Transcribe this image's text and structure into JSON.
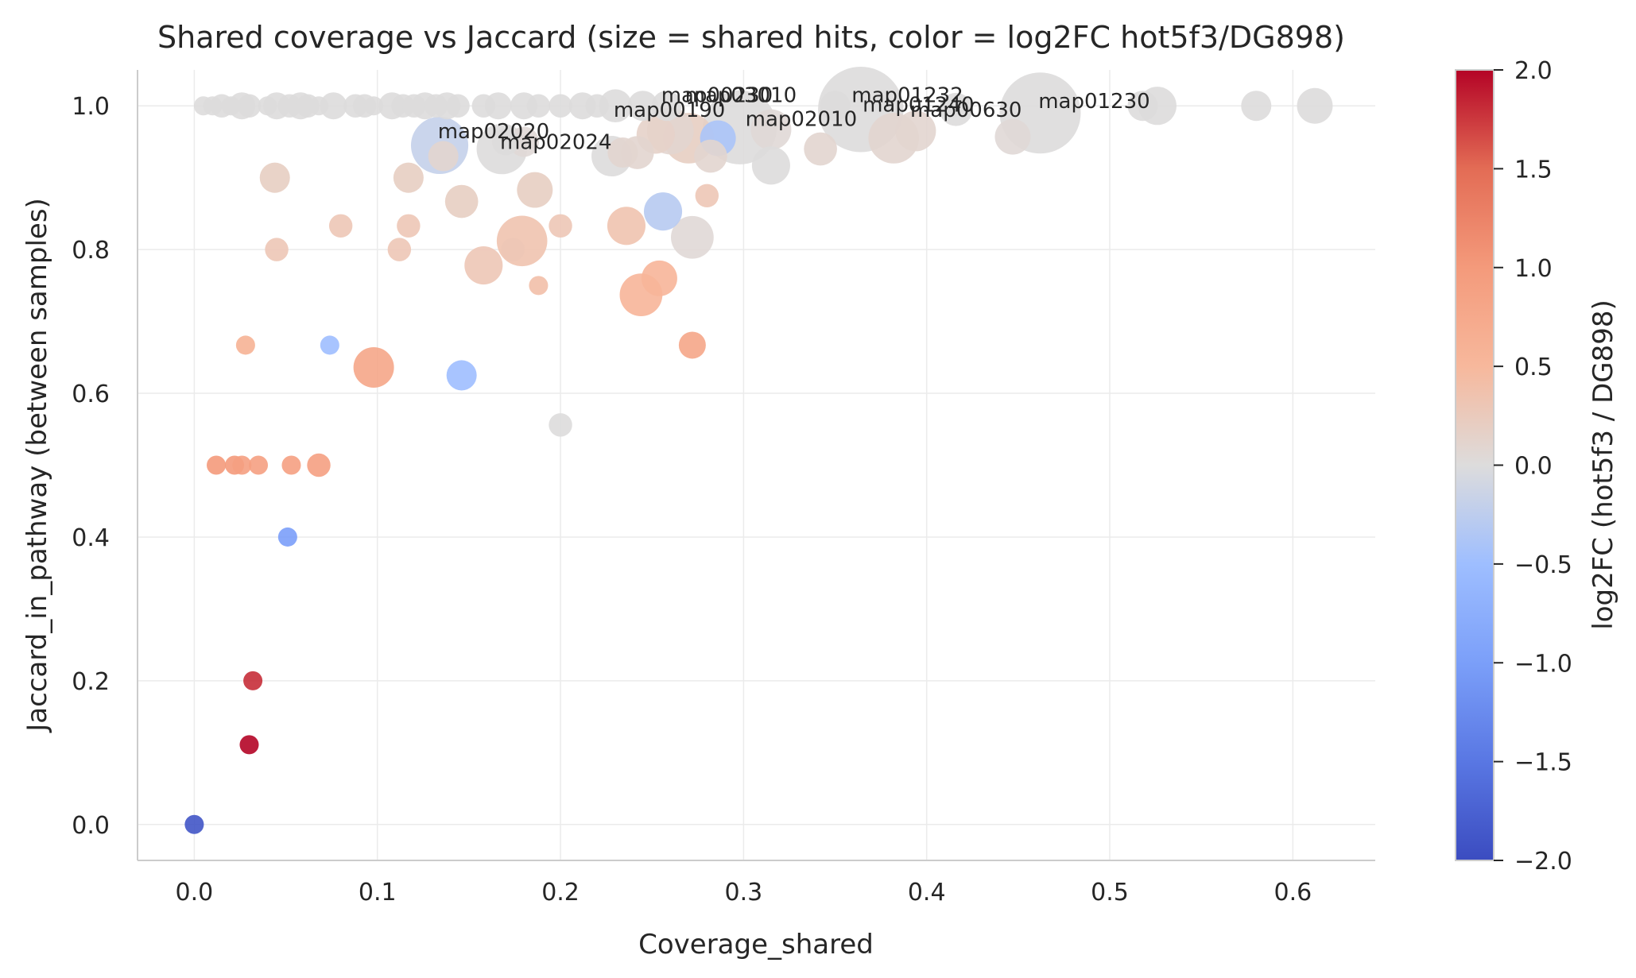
{
  "chart_data": {
    "type": "scatter",
    "title": "Shared coverage vs Jaccard (size = shared hits, color = log2FC hot5f3/DG898)",
    "xlabel": "Coverage_shared",
    "ylabel": "Jaccard_in_pathway (between samples)",
    "xlim": [
      -0.031,
      0.645
    ],
    "ylim": [
      -0.05,
      1.05
    ],
    "xticks": [
      "0.0",
      "0.1",
      "0.2",
      "0.3",
      "0.4",
      "0.5",
      "0.6"
    ],
    "yticks": [
      "0.0",
      "0.2",
      "0.4",
      "0.6",
      "0.8",
      "1.0"
    ],
    "grid": true,
    "colorbar": {
      "label": "log2FC (hot5f3 / DG898)",
      "min": -2.0,
      "max": 2.0,
      "colormap": "coolwarm",
      "ticks": [
        "2.0",
        "1.5",
        "1.0",
        "0.5",
        "0.0",
        "−0.5",
        "−1.0",
        "−1.5",
        "−2.0"
      ]
    },
    "points": [
      {
        "x": 0.005,
        "y": 1.0,
        "s": 2,
        "c": 0.0
      },
      {
        "x": 0.01,
        "y": 1.0,
        "s": 2,
        "c": 0.0
      },
      {
        "x": 0.015,
        "y": 1.0,
        "s": 3,
        "c": 0.0
      },
      {
        "x": 0.02,
        "y": 1.0,
        "s": 2,
        "c": 0.0
      },
      {
        "x": 0.026,
        "y": 1.0,
        "s": 4,
        "c": 0.0
      },
      {
        "x": 0.03,
        "y": 1.0,
        "s": 3,
        "c": 0.0
      },
      {
        "x": 0.04,
        "y": 1.0,
        "s": 2,
        "c": 0.0
      },
      {
        "x": 0.045,
        "y": 1.0,
        "s": 4,
        "c": 0.0
      },
      {
        "x": 0.052,
        "y": 1.0,
        "s": 3,
        "c": 0.0
      },
      {
        "x": 0.058,
        "y": 1.0,
        "s": 4,
        "c": 0.0
      },
      {
        "x": 0.062,
        "y": 1.0,
        "s": 3,
        "c": 0.0
      },
      {
        "x": 0.068,
        "y": 1.0,
        "s": 2,
        "c": 0.0
      },
      {
        "x": 0.076,
        "y": 1.0,
        "s": 4,
        "c": 0.0
      },
      {
        "x": 0.088,
        "y": 1.0,
        "s": 3,
        "c": 0.0
      },
      {
        "x": 0.093,
        "y": 1.0,
        "s": 3,
        "c": 0.0
      },
      {
        "x": 0.098,
        "y": 1.0,
        "s": 2,
        "c": 0.0
      },
      {
        "x": 0.108,
        "y": 1.0,
        "s": 4,
        "c": 0.0
      },
      {
        "x": 0.114,
        "y": 1.0,
        "s": 3,
        "c": 0.0
      },
      {
        "x": 0.12,
        "y": 1.0,
        "s": 3,
        "c": 0.0
      },
      {
        "x": 0.126,
        "y": 1.0,
        "s": 4,
        "c": 0.0
      },
      {
        "x": 0.132,
        "y": 1.0,
        "s": 3,
        "c": 0.0
      },
      {
        "x": 0.138,
        "y": 1.0,
        "s": 4,
        "c": 0.0
      },
      {
        "x": 0.144,
        "y": 1.0,
        "s": 3,
        "c": 0.0
      },
      {
        "x": 0.158,
        "y": 1.0,
        "s": 3,
        "c": 0.0
      },
      {
        "x": 0.166,
        "y": 1.0,
        "s": 4,
        "c": 0.0
      },
      {
        "x": 0.18,
        "y": 1.0,
        "s": 4,
        "c": 0.0
      },
      {
        "x": 0.188,
        "y": 1.0,
        "s": 3,
        "c": 0.0
      },
      {
        "x": 0.2,
        "y": 1.0,
        "s": 3,
        "c": 0.0
      },
      {
        "x": 0.212,
        "y": 1.0,
        "s": 4,
        "c": 0.0
      },
      {
        "x": 0.22,
        "y": 1.0,
        "s": 3,
        "c": 0.0
      },
      {
        "x": 0.23,
        "y": 1.0,
        "s": 6,
        "c": 0.0
      },
      {
        "x": 0.245,
        "y": 1.0,
        "s": 5,
        "c": 0.0
      },
      {
        "x": 0.258,
        "y": 1.0,
        "s": 5,
        "c": 0.0
      },
      {
        "x": 0.35,
        "y": 1.0,
        "s": 5,
        "c": 0.0
      },
      {
        "x": 0.364,
        "y": 0.995,
        "s": 40,
        "c": 0.0
      },
      {
        "x": 0.416,
        "y": 0.995,
        "s": 6,
        "c": 0.0
      },
      {
        "x": 0.462,
        "y": 0.99,
        "s": 36,
        "c": 0.0
      },
      {
        "x": 0.518,
        "y": 1.0,
        "s": 5,
        "c": 0.0
      },
      {
        "x": 0.526,
        "y": 1.0,
        "s": 8,
        "c": 0.0
      },
      {
        "x": 0.58,
        "y": 1.0,
        "s": 5,
        "c": 0.0
      },
      {
        "x": 0.612,
        "y": 1.0,
        "s": 7,
        "c": 0.0
      },
      {
        "x": 0.134,
        "y": 0.945,
        "s": 18,
        "c": -0.2
      },
      {
        "x": 0.136,
        "y": 0.93,
        "s": 5,
        "c": 0.1
      },
      {
        "x": 0.168,
        "y": 0.94,
        "s": 14,
        "c": 0.0
      },
      {
        "x": 0.17,
        "y": 0.95,
        "s": 4,
        "c": 0.0
      },
      {
        "x": 0.18,
        "y": 0.95,
        "s": 5,
        "c": 0.05
      },
      {
        "x": 0.228,
        "y": 0.93,
        "s": 9,
        "c": 0.0
      },
      {
        "x": 0.234,
        "y": 0.935,
        "s": 5,
        "c": 0.1
      },
      {
        "x": 0.242,
        "y": 0.935,
        "s": 6,
        "c": 0.1
      },
      {
        "x": 0.252,
        "y": 0.96,
        "s": 8,
        "c": 0.15
      },
      {
        "x": 0.26,
        "y": 0.965,
        "s": 12,
        "c": 0.1
      },
      {
        "x": 0.27,
        "y": 0.955,
        "s": 14,
        "c": 0.2
      },
      {
        "x": 0.282,
        "y": 0.93,
        "s": 6,
        "c": 0.1
      },
      {
        "x": 0.286,
        "y": 0.955,
        "s": 7,
        "c": -0.4
      },
      {
        "x": 0.298,
        "y": 0.97,
        "s": 30,
        "c": 0.0
      },
      {
        "x": 0.315,
        "y": 0.967,
        "s": 9,
        "c": 0.05
      },
      {
        "x": 0.315,
        "y": 0.917,
        "s": 8,
        "c": 0.0
      },
      {
        "x": 0.342,
        "y": 0.94,
        "s": 6,
        "c": 0.1
      },
      {
        "x": 0.382,
        "y": 0.955,
        "s": 14,
        "c": 0.1
      },
      {
        "x": 0.394,
        "y": 0.965,
        "s": 9,
        "c": 0.1
      },
      {
        "x": 0.447,
        "y": 0.957,
        "s": 7,
        "c": 0.05
      },
      {
        "x": 0.044,
        "y": 0.9,
        "s": 5,
        "c": 0.2
      },
      {
        "x": 0.117,
        "y": 0.9,
        "s": 5,
        "c": 0.2
      },
      {
        "x": 0.146,
        "y": 0.867,
        "s": 6,
        "c": 0.2
      },
      {
        "x": 0.186,
        "y": 0.883,
        "s": 7,
        "c": 0.2
      },
      {
        "x": 0.08,
        "y": 0.833,
        "s": 3,
        "c": 0.3
      },
      {
        "x": 0.117,
        "y": 0.833,
        "s": 3,
        "c": 0.3
      },
      {
        "x": 0.2,
        "y": 0.833,
        "s": 3,
        "c": 0.3
      },
      {
        "x": 0.236,
        "y": 0.833,
        "s": 8,
        "c": 0.35
      },
      {
        "x": 0.256,
        "y": 0.853,
        "s": 8,
        "c": -0.3
      },
      {
        "x": 0.272,
        "y": 0.817,
        "s": 10,
        "c": 0.05
      },
      {
        "x": 0.28,
        "y": 0.875,
        "s": 3,
        "c": 0.3
      },
      {
        "x": 0.045,
        "y": 0.8,
        "s": 3,
        "c": 0.3
      },
      {
        "x": 0.112,
        "y": 0.8,
        "s": 3,
        "c": 0.3
      },
      {
        "x": 0.158,
        "y": 0.778,
        "s": 8,
        "c": 0.3
      },
      {
        "x": 0.174,
        "y": 0.8,
        "s": 3,
        "c": 0.3
      },
      {
        "x": 0.179,
        "y": 0.812,
        "s": 14,
        "c": 0.35
      },
      {
        "x": 0.188,
        "y": 0.75,
        "s": 2,
        "c": 0.4
      },
      {
        "x": 0.244,
        "y": 0.737,
        "s": 10,
        "c": 0.55
      },
      {
        "x": 0.254,
        "y": 0.76,
        "s": 7,
        "c": 0.55
      },
      {
        "x": 0.028,
        "y": 0.667,
        "s": 2,
        "c": 0.6
      },
      {
        "x": 0.074,
        "y": 0.667,
        "s": 2,
        "c": -0.5
      },
      {
        "x": 0.098,
        "y": 0.636,
        "s": 9,
        "c": 0.8
      },
      {
        "x": 0.146,
        "y": 0.625,
        "s": 5,
        "c": -0.5
      },
      {
        "x": 0.272,
        "y": 0.667,
        "s": 4,
        "c": 0.8
      },
      {
        "x": 0.2,
        "y": 0.556,
        "s": 3,
        "c": 0.0
      },
      {
        "x": 0.012,
        "y": 0.5,
        "s": 2,
        "c": 1.0
      },
      {
        "x": 0.022,
        "y": 0.5,
        "s": 2,
        "c": 1.0
      },
      {
        "x": 0.026,
        "y": 0.5,
        "s": 2,
        "c": 0.9
      },
      {
        "x": 0.035,
        "y": 0.5,
        "s": 2,
        "c": 0.9
      },
      {
        "x": 0.053,
        "y": 0.5,
        "s": 2,
        "c": 0.9
      },
      {
        "x": 0.068,
        "y": 0.5,
        "s": 3,
        "c": 0.9
      },
      {
        "x": 0.051,
        "y": 0.4,
        "s": 2,
        "c": -1.0
      },
      {
        "x": 0.032,
        "y": 0.2,
        "s": 2,
        "c": 1.8
      },
      {
        "x": 0.03,
        "y": 0.111,
        "s": 2,
        "c": 2.0
      },
      {
        "x": 0.0,
        "y": 0.0,
        "s": 2,
        "c": -1.9
      }
    ],
    "annotations": [
      {
        "text": "map02020",
        "x": 0.133,
        "y": 0.955
      },
      {
        "text": "map02024",
        "x": 0.167,
        "y": 0.94
      },
      {
        "text": "map00190",
        "x": 0.229,
        "y": 0.985
      },
      {
        "text": "map00230",
        "x": 0.255,
        "y": 1.005
      },
      {
        "text": "map03010",
        "x": 0.268,
        "y": 1.005
      },
      {
        "text": "map02010",
        "x": 0.301,
        "y": 0.972
      },
      {
        "text": "map01232",
        "x": 0.359,
        "y": 1.005
      },
      {
        "text": "map01240",
        "x": 0.365,
        "y": 0.992
      },
      {
        "text": "map00630",
        "x": 0.391,
        "y": 0.985
      },
      {
        "text": "map01230",
        "x": 0.461,
        "y": 0.997
      }
    ]
  }
}
